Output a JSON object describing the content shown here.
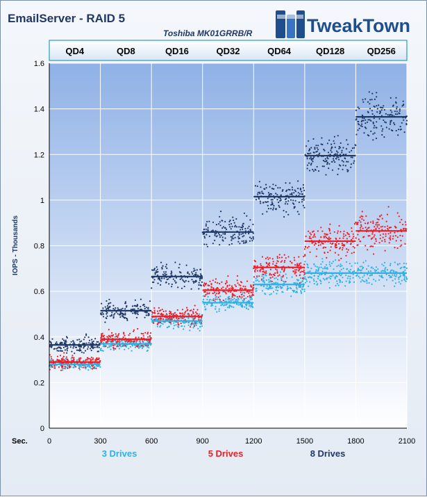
{
  "chart_data": {
    "type": "scatter",
    "title": "EmailServer - RAID 5",
    "subtitle": "Toshiba MK01GRRB/R",
    "ylabel": "IOPS - Thousands",
    "xlabel": "Sec.",
    "ylim": [
      0,
      1.6
    ],
    "xlim": [
      0,
      2100
    ],
    "y_ticks": [
      "0",
      "0.2",
      "0.4",
      "0.6",
      "0.8",
      "1",
      "1.2",
      "1.4",
      "1.6"
    ],
    "x_ticks": [
      "0",
      "300",
      "600",
      "900",
      "1200",
      "1500",
      "1800",
      "2100"
    ],
    "qd_labels": [
      "QD4",
      "QD8",
      "QD16",
      "QD32",
      "QD64",
      "QD128",
      "QD256"
    ],
    "grid": true,
    "legend_position": "bottom",
    "series": [
      {
        "name": "3 Drives",
        "color": "#2fb0e4",
        "means": [
          0.28,
          0.37,
          0.47,
          0.55,
          0.63,
          0.68,
          0.68
        ],
        "spread": [
          0.02,
          0.025,
          0.03,
          0.035,
          0.04,
          0.05,
          0.05
        ]
      },
      {
        "name": "5 Drives",
        "color": "#ee1c25",
        "means": [
          0.29,
          0.39,
          0.49,
          0.605,
          0.705,
          0.82,
          0.865
        ],
        "spread": [
          0.025,
          0.03,
          0.035,
          0.04,
          0.05,
          0.06,
          0.07
        ]
      },
      {
        "name": "8 Drives",
        "color": "#1f3864",
        "means": [
          0.365,
          0.515,
          0.665,
          0.86,
          1.015,
          1.195,
          1.365
        ],
        "spread": [
          0.03,
          0.04,
          0.045,
          0.055,
          0.06,
          0.07,
          0.08
        ]
      }
    ]
  },
  "logo": {
    "text": "TweakTown",
    "icon": "tweaktown-logo-icon"
  }
}
